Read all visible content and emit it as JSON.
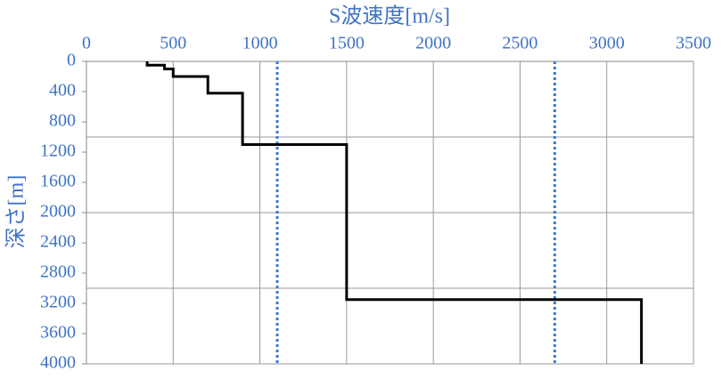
{
  "chart_data": {
    "type": "line",
    "xlabel": "S波速度[m/s]",
    "ylabel": "深さ[m]",
    "xlim": [
      0,
      3500
    ],
    "xticks": [
      0,
      500,
      1000,
      1500,
      2000,
      2500,
      3000,
      3500
    ],
    "ylim": [
      0,
      4000
    ],
    "yticks": [
      0,
      400,
      800,
      1200,
      1600,
      2000,
      2400,
      2800,
      3200,
      3600,
      4000
    ],
    "ygrid": [
      0,
      1000,
      2000,
      3000,
      4000
    ],
    "yinverted": true,
    "grid": true,
    "series": [
      {
        "color": "#000000",
        "x": [
          350,
          350,
          450,
          450,
          500,
          500,
          700,
          700,
          900,
          900,
          1500,
          1500,
          3200,
          3200
        ],
        "values": [
          0,
          50,
          50,
          100,
          100,
          200,
          200,
          420,
          420,
          1100,
          1100,
          3150,
          3150,
          4000
        ]
      }
    ],
    "reference_lines": [
      {
        "value": 1100,
        "color": "#3a78d8"
      },
      {
        "value": 2700,
        "color": "#3a78d8"
      }
    ]
  }
}
